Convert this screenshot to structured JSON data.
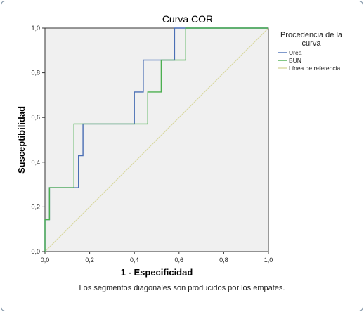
{
  "chart_data": {
    "type": "line",
    "title": "Curva COR",
    "xlabel": "1 - Especificidad",
    "ylabel": "Susceptibilidad",
    "xlim": [
      0,
      1
    ],
    "ylim": [
      0,
      1
    ],
    "x_ticks": [
      "0,0",
      "0,2",
      "0,4",
      "0,6",
      "0,8",
      "1,0"
    ],
    "y_ticks": [
      "0,0",
      "0,2",
      "0,4",
      "0,6",
      "0,8",
      "1,0"
    ],
    "grid": false,
    "legend_title": "Procedencia de la curva",
    "legend_position": "right",
    "series": [
      {
        "name": "Urea",
        "color": "#4a6fb5",
        "x": [
          0.0,
          0.0,
          0.02,
          0.02,
          0.04,
          0.04,
          0.15,
          0.15,
          0.17,
          0.17,
          0.4,
          0.4,
          0.44,
          0.44,
          0.55,
          0.55,
          0.58,
          0.58,
          1.0
        ],
        "y": [
          0.0,
          0.143,
          0.143,
          0.286,
          0.286,
          0.286,
          0.286,
          0.429,
          0.429,
          0.571,
          0.571,
          0.714,
          0.714,
          0.857,
          0.857,
          0.857,
          0.857,
          1.0,
          1.0
        ]
      },
      {
        "name": "BUN",
        "color": "#4caf50",
        "x": [
          0.0,
          0.0,
          0.02,
          0.02,
          0.13,
          0.13,
          0.46,
          0.46,
          0.52,
          0.52,
          0.62,
          0.62,
          0.63,
          0.63,
          1.0
        ],
        "y": [
          0.0,
          0.143,
          0.143,
          0.286,
          0.286,
          0.571,
          0.571,
          0.714,
          0.714,
          0.857,
          0.857,
          0.857,
          0.857,
          1.0,
          1.0
        ]
      },
      {
        "name": "Línea de referencia",
        "color": "#d8d8a0",
        "x": [
          0,
          1
        ],
        "y": [
          0,
          1
        ]
      }
    ],
    "footnote": "Los segmentos diagonales son producidos por los empates."
  }
}
